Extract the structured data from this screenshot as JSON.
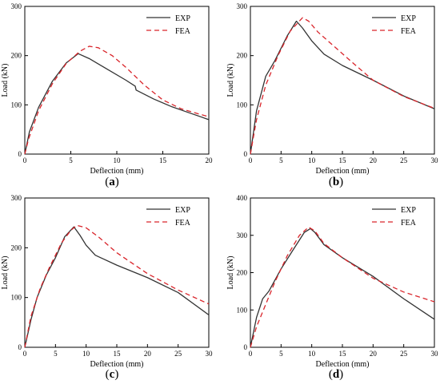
{
  "chart_data": [
    {
      "type": "line",
      "panel_label": "(a)",
      "xlabel": "Deflection (mm)",
      "ylabel": "Load (kN)",
      "xlim": [
        0,
        20
      ],
      "ylim": [
        0,
        300
      ],
      "xticks": [
        0,
        5,
        10,
        15,
        20
      ],
      "yticks": [
        0,
        100,
        200,
        300
      ],
      "legend_position": "top-right",
      "series": [
        {
          "name": "EXP",
          "color": "#333333",
          "dash": "solid",
          "points": [
            [
              0,
              0
            ],
            [
              0.5,
              45
            ],
            [
              1.5,
              95
            ],
            [
              3,
              148
            ],
            [
              4.5,
              185
            ],
            [
              5.8,
              204
            ],
            [
              7,
              194
            ],
            [
              9,
              172
            ],
            [
              11,
              150
            ],
            [
              12,
              138
            ],
            [
              12.1,
              130
            ],
            [
              14,
              112
            ],
            [
              16,
              96
            ],
            [
              18,
              83
            ],
            [
              20,
              70
            ]
          ]
        },
        {
          "name": "FEA",
          "color": "#d9252b",
          "dash": "dashed",
          "points": [
            [
              0,
              0
            ],
            [
              0.4,
              30
            ],
            [
              1.5,
              88
            ],
            [
              3,
              143
            ],
            [
              4.5,
              184
            ],
            [
              6,
              209
            ],
            [
              7,
              219
            ],
            [
              8,
              216
            ],
            [
              9.5,
              200
            ],
            [
              11,
              176
            ],
            [
              13,
              140
            ],
            [
              15,
              110
            ],
            [
              17,
              92
            ],
            [
              19,
              81
            ],
            [
              20,
              76
            ]
          ]
        }
      ]
    },
    {
      "type": "line",
      "panel_label": "(b)",
      "xlabel": "Deflection (mm)",
      "ylabel": "Load (kN)",
      "xlim": [
        0,
        30
      ],
      "ylim": [
        0,
        300
      ],
      "xticks": [
        0,
        5,
        10,
        15,
        20,
        25,
        30
      ],
      "yticks": [
        0,
        100,
        200,
        300
      ],
      "legend_position": "top-right",
      "series": [
        {
          "name": "EXP",
          "color": "#333333",
          "dash": "solid",
          "points": [
            [
              0,
              0
            ],
            [
              1,
              88
            ],
            [
              2.5,
              158
            ],
            [
              4,
              190
            ],
            [
              6,
              240
            ],
            [
              7.5,
              270
            ],
            [
              8.5,
              256
            ],
            [
              10,
              230
            ],
            [
              12,
              203
            ],
            [
              15,
              180
            ],
            [
              20,
              150
            ],
            [
              25,
              118
            ],
            [
              30,
              92
            ]
          ]
        },
        {
          "name": "FEA",
          "color": "#d9252b",
          "dash": "dashed",
          "points": [
            [
              0,
              0
            ],
            [
              1,
              70
            ],
            [
              2.5,
              140
            ],
            [
              4.5,
              200
            ],
            [
              6.5,
              250
            ],
            [
              8.5,
              277
            ],
            [
              9.5,
              270
            ],
            [
              11,
              248
            ],
            [
              14,
              215
            ],
            [
              17,
              182
            ],
            [
              20,
              150
            ],
            [
              25,
              117
            ],
            [
              30,
              93
            ]
          ]
        }
      ]
    },
    {
      "type": "line",
      "panel_label": "(c)",
      "xlabel": "Deflection (mm)",
      "ylabel": "Load (kN)",
      "xlim": [
        0,
        30
      ],
      "ylim": [
        0,
        300
      ],
      "xticks": [
        0,
        5,
        10,
        15,
        20,
        25,
        30
      ],
      "yticks": [
        0,
        100,
        200,
        300
      ],
      "legend_position": "top-right",
      "series": [
        {
          "name": "EXP",
          "color": "#333333",
          "dash": "solid",
          "points": [
            [
              0,
              0
            ],
            [
              1,
              55
            ],
            [
              2,
              100
            ],
            [
              3.5,
              145
            ],
            [
              5,
              180
            ],
            [
              6.5,
              222
            ],
            [
              8,
              242
            ],
            [
              9,
              225
            ],
            [
              10,
              205
            ],
            [
              11.5,
              185
            ],
            [
              15,
              165
            ],
            [
              20,
              140
            ],
            [
              25,
              110
            ],
            [
              30,
              65
            ]
          ]
        },
        {
          "name": "FEA",
          "color": "#d9252b",
          "dash": "dashed",
          "points": [
            [
              0,
              0
            ],
            [
              1,
              62
            ],
            [
              2.5,
              118
            ],
            [
              4,
              160
            ],
            [
              6,
              210
            ],
            [
              7.5,
              235
            ],
            [
              8.5,
              245
            ],
            [
              10,
              240
            ],
            [
              12,
              222
            ],
            [
              15,
              190
            ],
            [
              20,
              148
            ],
            [
              25,
              115
            ],
            [
              30,
              87
            ]
          ]
        }
      ]
    },
    {
      "type": "line",
      "panel_label": "(d)",
      "xlabel": "Deflection (mm)",
      "ylabel": "Load (kN)",
      "xlim": [
        0,
        30
      ],
      "ylim": [
        0,
        400
      ],
      "xticks": [
        0,
        5,
        10,
        15,
        20,
        25,
        30
      ],
      "yticks": [
        0,
        100,
        200,
        300,
        400
      ],
      "legend_position": "top-right",
      "series": [
        {
          "name": "EXP",
          "color": "#333333",
          "dash": "solid",
          "points": [
            [
              0,
              0
            ],
            [
              1,
              80
            ],
            [
              2,
              130
            ],
            [
              3,
              150
            ],
            [
              5,
              210
            ],
            [
              7,
              262
            ],
            [
              8.8,
              308
            ],
            [
              9.8,
              318
            ],
            [
              10.5,
              308
            ],
            [
              12,
              275
            ],
            [
              15,
              240
            ],
            [
              20,
              190
            ],
            [
              25,
              130
            ],
            [
              30,
              75
            ]
          ]
        },
        {
          "name": "FEA",
          "color": "#d9252b",
          "dash": "dashed",
          "points": [
            [
              0,
              0
            ],
            [
              1,
              55
            ],
            [
              2.5,
              115
            ],
            [
              4,
              175
            ],
            [
              6,
              245
            ],
            [
              8,
              300
            ],
            [
              9.5,
              322
            ],
            [
              10.5,
              312
            ],
            [
              12,
              278
            ],
            [
              15,
              240
            ],
            [
              20,
              185
            ],
            [
              25,
              148
            ],
            [
              30,
              122
            ]
          ]
        }
      ]
    }
  ]
}
